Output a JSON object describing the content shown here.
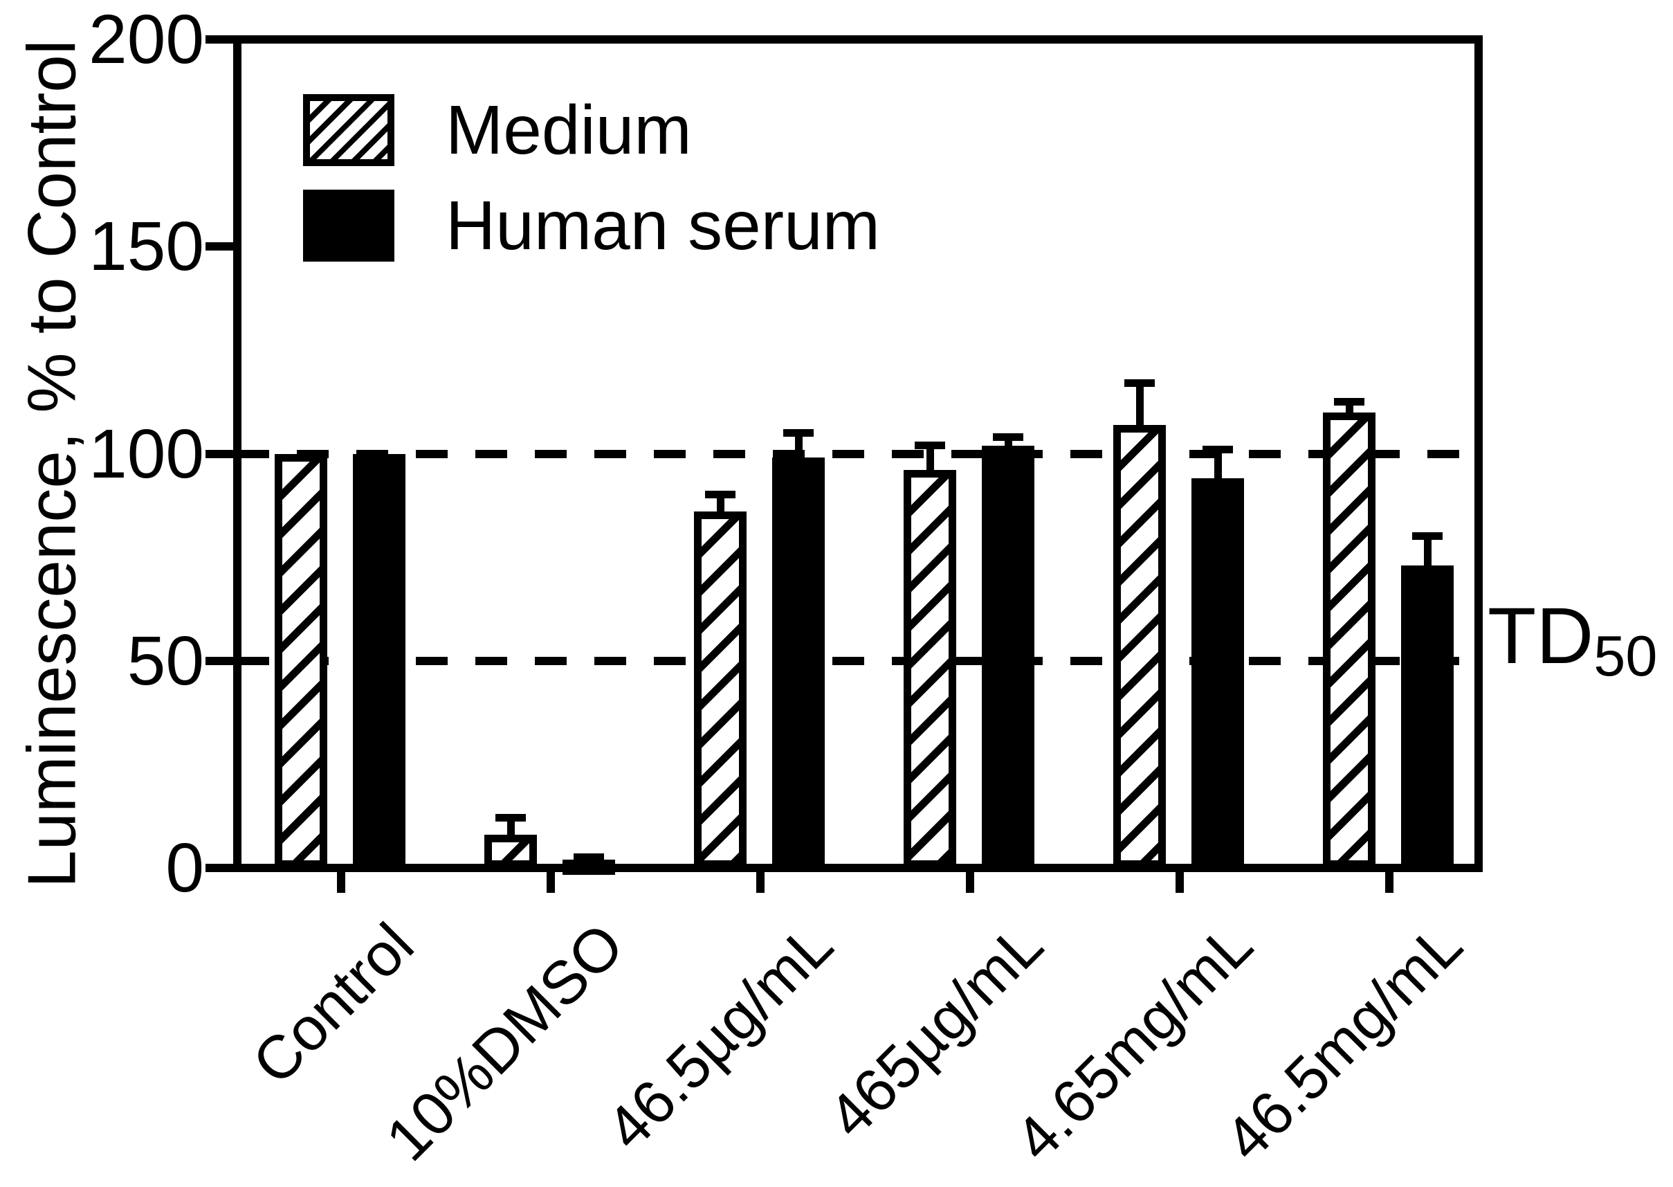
{
  "figure": {
    "td50_label": {
      "text": "TD",
      "sub": "50"
    }
  },
  "chart_data": {
    "type": "bar",
    "title": "",
    "xlabel": "",
    "ylabel": "Luminescence, % to Control",
    "ylim": [
      0,
      200
    ],
    "y_ticks": [
      0,
      50,
      100,
      150,
      200
    ],
    "guide_lines": [
      100,
      50
    ],
    "guide_line_annotation": "TD50",
    "grid": "off",
    "legend_position": "top-left inside plot",
    "categories": [
      "Control",
      "10%DMSO",
      "46.5µg/mL",
      "465µg/mL",
      "4.65mg/mL",
      "46.5mg/mL"
    ],
    "series": [
      {
        "name": "Medium",
        "fill": "diagonal-hatch",
        "values": [
          100,
          8,
          86,
          96,
          107,
          110
        ],
        "errors_plus": [
          0,
          5,
          5,
          7,
          11,
          3.5
        ]
      },
      {
        "name": "Human serum",
        "fill": "solid-black",
        "values": [
          100,
          2,
          99,
          102,
          94,
          73
        ],
        "errors_plus": [
          0,
          1.5,
          7,
          3,
          8,
          8
        ]
      }
    ],
    "colors": {
      "foreground": "#000000",
      "background": "#ffffff"
    }
  }
}
